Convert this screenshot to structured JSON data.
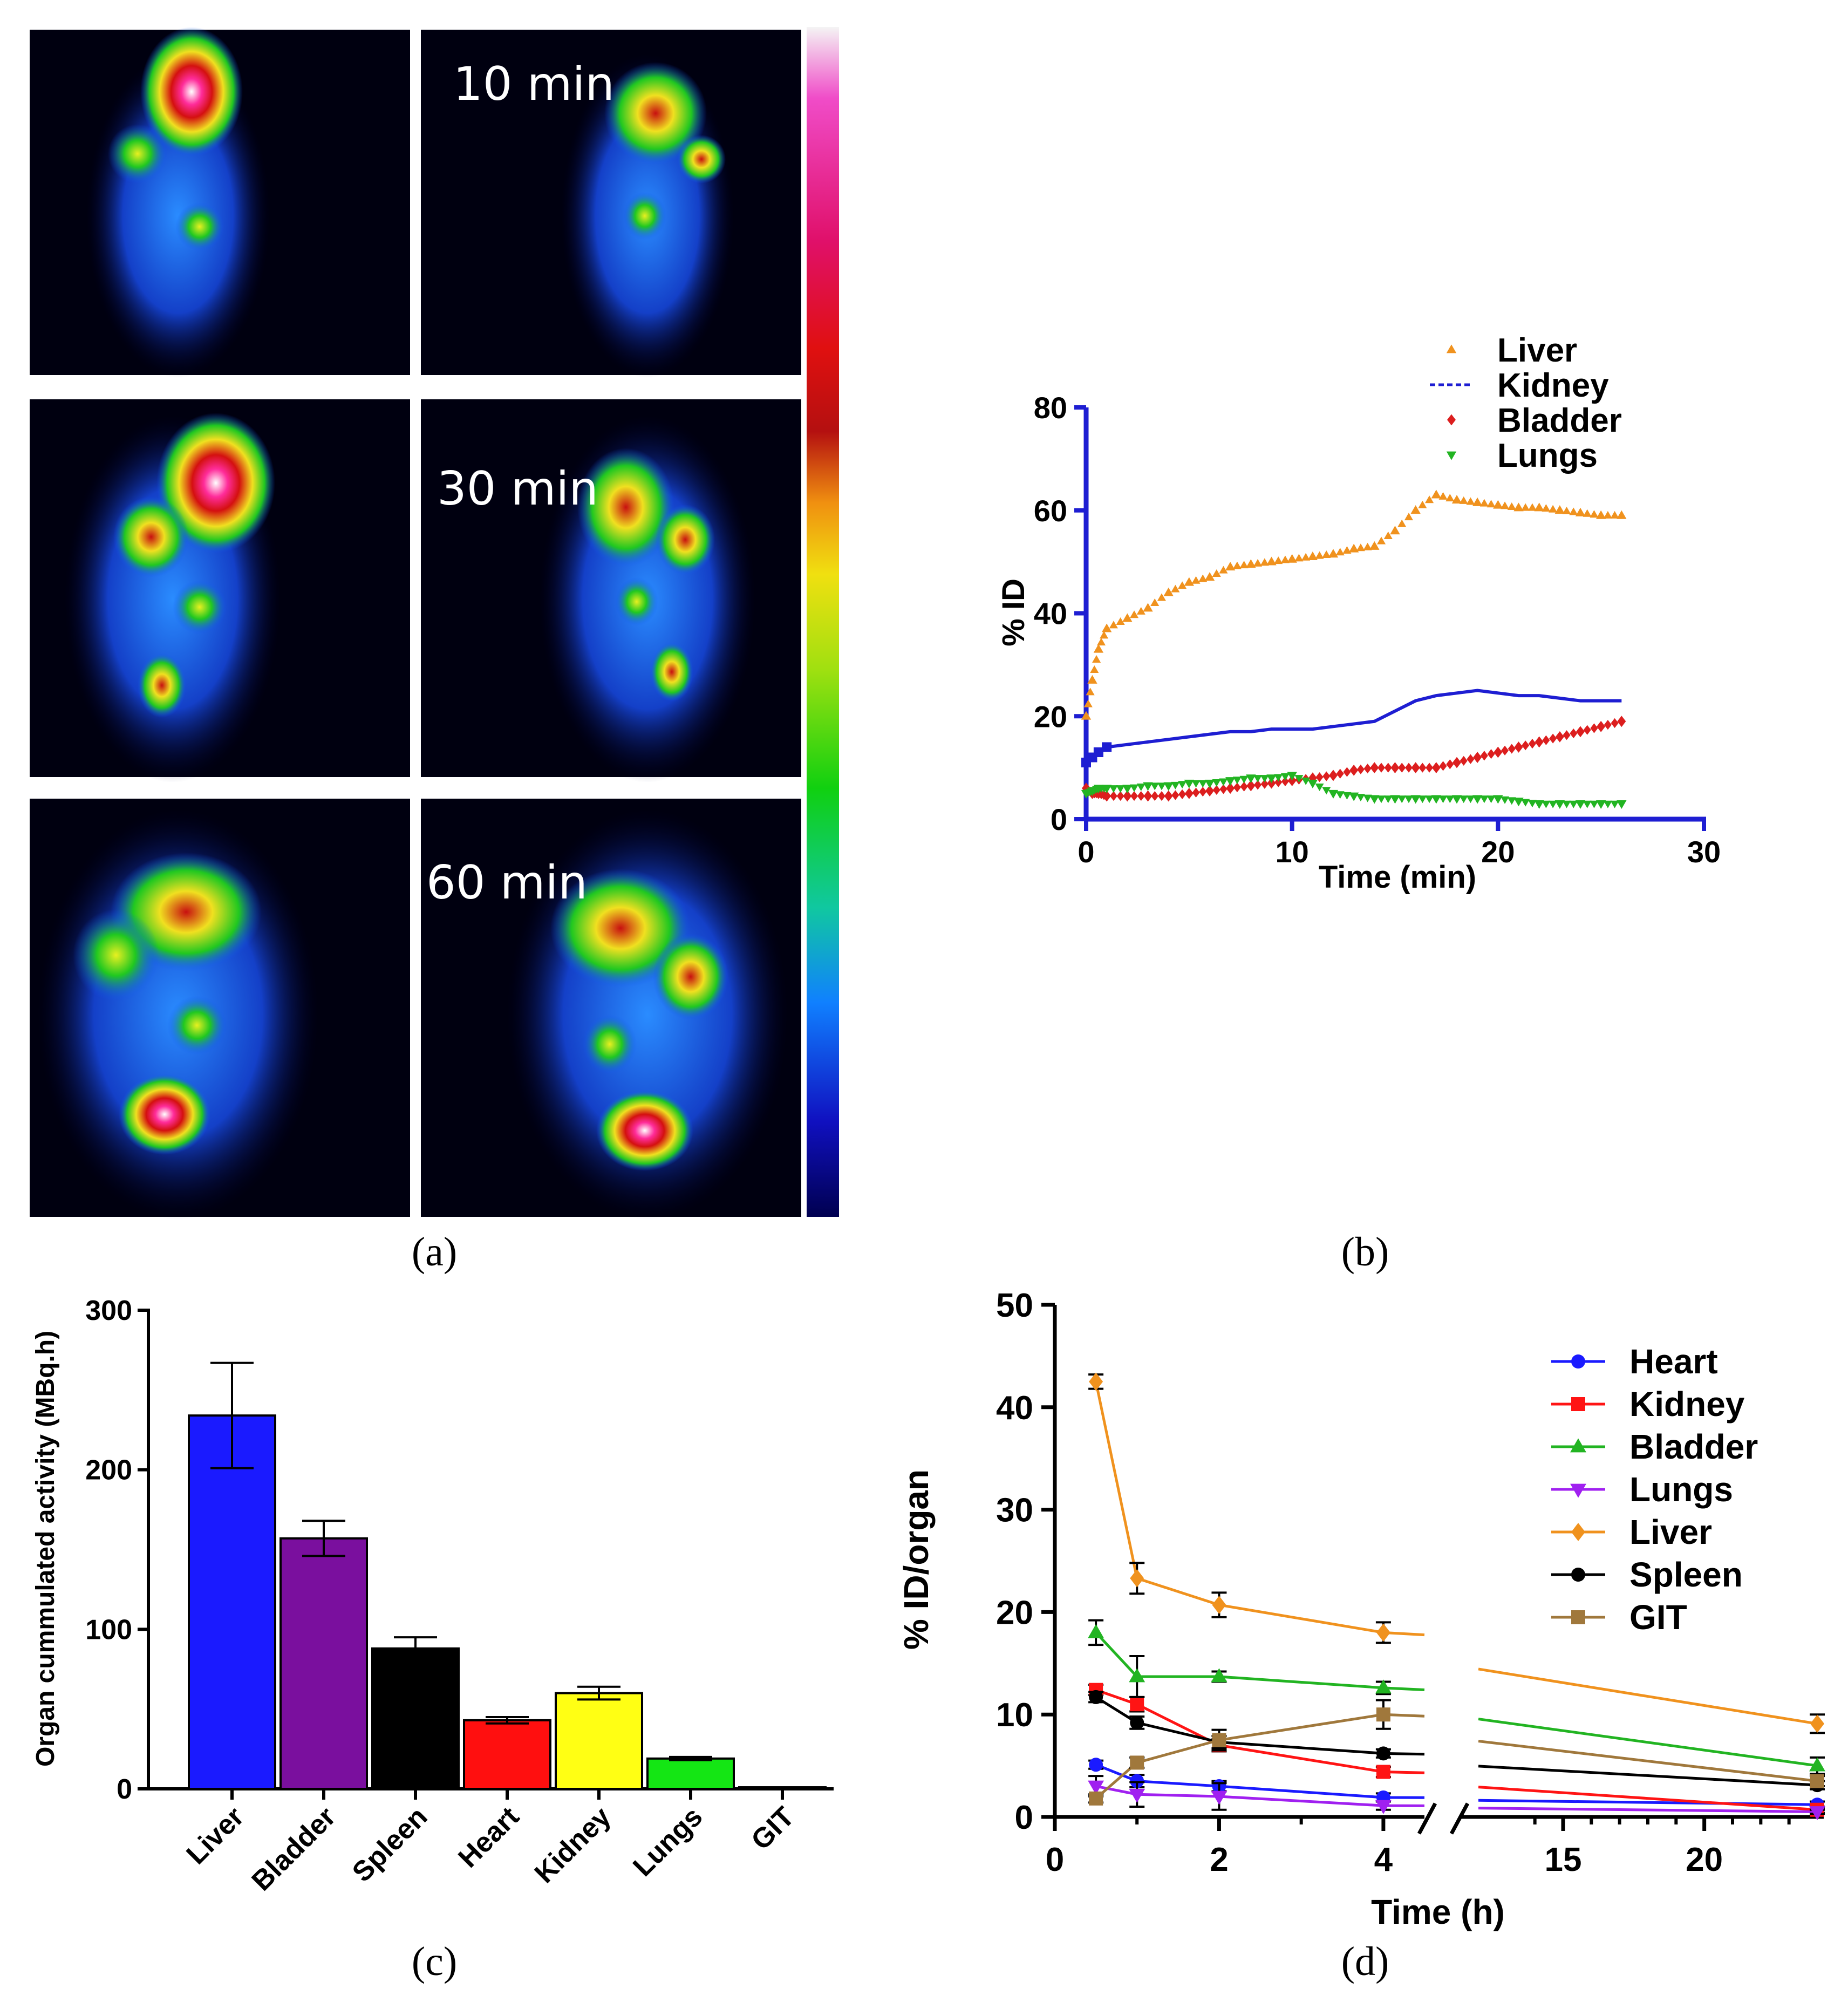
{
  "panels": {
    "a": {
      "label": "(a)",
      "times": [
        "10 min",
        "30 min",
        "60 min"
      ]
    },
    "b": {
      "label": "(b)"
    },
    "c": {
      "label": "(c)"
    },
    "d": {
      "label": "(d)"
    }
  },
  "colors": {
    "liver": "#f0921e",
    "kidney": "#1e1ed2",
    "bladder": "#dc1e1e",
    "lungs": "#22b422",
    "heart": "#1a1aff",
    "lungs_d": "#a020f0",
    "spleen": "#000000",
    "git": "#a0783c"
  },
  "chart_data": [
    {
      "id": "b",
      "type": "line",
      "title": "",
      "xlabel": "Time (min)",
      "ylabel": "% ID",
      "xlim": [
        0,
        30
      ],
      "ylim": [
        0,
        80
      ],
      "xticks": [
        0,
        10,
        20,
        30
      ],
      "yticks": [
        0,
        20,
        40,
        60,
        80
      ],
      "series": [
        {
          "name": "Liver",
          "marker": "triangle-up",
          "color": "#f0921e",
          "x": [
            0,
            0.3,
            0.6,
            1,
            2,
            3,
            4,
            5,
            6,
            7,
            8,
            9,
            10,
            11,
            12,
            13,
            14,
            15,
            16,
            17,
            18,
            19,
            20,
            21,
            22,
            23,
            24,
            25,
            26
          ],
          "y": [
            20,
            27,
            33,
            37,
            39,
            41,
            44,
            46,
            47,
            49,
            49.5,
            50,
            50.5,
            51,
            51.5,
            52.5,
            53,
            56,
            60,
            63,
            62,
            61.5,
            61,
            60.5,
            60.5,
            60,
            59.5,
            59,
            59
          ]
        },
        {
          "name": "Kidney",
          "marker": "square",
          "color": "#1e1ed2",
          "x": [
            0,
            0.3,
            0.6,
            1,
            2,
            3,
            4,
            5,
            6,
            7,
            8,
            9,
            10,
            11,
            12,
            13,
            14,
            15,
            16,
            17,
            18,
            19,
            20,
            21,
            22,
            23,
            24,
            25,
            26
          ],
          "y": [
            11,
            12,
            13,
            14,
            14.5,
            15,
            15.5,
            16,
            16.5,
            17,
            17,
            17.5,
            17.5,
            17.5,
            18,
            18.5,
            19,
            21,
            23,
            24,
            24.5,
            25,
            24.5,
            24,
            24,
            23.5,
            23,
            23,
            23
          ]
        },
        {
          "name": "Bladder",
          "marker": "diamond",
          "color": "#dc1e1e",
          "x": [
            0,
            0.3,
            0.6,
            1,
            2,
            3,
            4,
            5,
            6,
            7,
            8,
            9,
            10,
            11,
            12,
            13,
            14,
            15,
            16,
            17,
            18,
            19,
            20,
            21,
            22,
            23,
            24,
            25,
            26
          ],
          "y": [
            6,
            5,
            5,
            4.5,
            4.5,
            4.5,
            4.5,
            5,
            5.5,
            6,
            6.5,
            7,
            7.5,
            8,
            8.5,
            9.5,
            10,
            10,
            10,
            10,
            11,
            12,
            13,
            14,
            15,
            16,
            17,
            18,
            19
          ]
        },
        {
          "name": "Lungs",
          "marker": "triangle-down",
          "color": "#22b422",
          "x": [
            0,
            0.3,
            0.6,
            1,
            2,
            3,
            4,
            5,
            6,
            7,
            8,
            9,
            10,
            11,
            12,
            13,
            14,
            15,
            16,
            17,
            18,
            19,
            20,
            21,
            22,
            23,
            24,
            25,
            26
          ],
          "y": [
            5,
            5.5,
            6,
            6,
            6,
            6.5,
            6.5,
            7,
            7,
            7.5,
            8,
            8,
            8.5,
            7,
            5,
            4.5,
            4,
            4,
            4,
            4,
            4,
            4,
            4,
            3.5,
            3,
            3,
            3,
            3,
            3
          ]
        }
      ]
    },
    {
      "id": "c",
      "type": "bar",
      "title": "",
      "xlabel": "",
      "ylabel": "Organ cummulated activity (MBq.h)",
      "ylim": [
        0,
        300
      ],
      "yticks": [
        0,
        100,
        200,
        300
      ],
      "categories": [
        "Liver",
        "Bladder",
        "Spleen",
        "Heart",
        "Kidney",
        "Lungs",
        "GIT"
      ],
      "values": [
        234,
        157,
        88,
        43,
        60,
        19,
        1
      ],
      "errors": [
        33,
        11,
        7,
        2,
        4,
        1,
        0
      ],
      "bar_colors": [
        "#1a1aff",
        "#7a0f9e",
        "#000000",
        "#ff0f0f",
        "#ffff14",
        "#14e614",
        "#ff0f0f"
      ]
    },
    {
      "id": "d",
      "type": "line",
      "title": "",
      "xlabel": "Time (h)",
      "ylabel": "% ID/organ",
      "ylim": [
        0,
        50
      ],
      "yticks": [
        0,
        10,
        20,
        30,
        40,
        50
      ],
      "x_segments": [
        [
          0,
          4.5
        ],
        [
          12,
          24
        ]
      ],
      "xticks": [
        0,
        2,
        4,
        15,
        20
      ],
      "x": [
        0.5,
        1,
        2,
        4,
        24
      ],
      "series": [
        {
          "name": "Heart",
          "marker": "circle",
          "color": "#1a1aff",
          "values": [
            5.1,
            3.5,
            3.0,
            1.9,
            1.2
          ],
          "errors": [
            0.4,
            0.6,
            0.5,
            0.4,
            0.3
          ]
        },
        {
          "name": "Kidney",
          "marker": "square",
          "color": "#ff1414",
          "values": [
            12.4,
            11.0,
            7.0,
            4.4,
            0.7
          ],
          "errors": [
            0.5,
            0.7,
            0.6,
            0.5,
            0.3
          ]
        },
        {
          "name": "Bladder",
          "marker": "triangle-up",
          "color": "#22b422",
          "values": [
            18.0,
            13.7,
            13.7,
            12.6,
            5.0
          ],
          "errors": [
            1.2,
            2.0,
            0.5,
            0.6,
            0.8
          ]
        },
        {
          "name": "Lungs",
          "marker": "triangle-down",
          "color": "#a020f0",
          "values": [
            3.0,
            2.2,
            2.0,
            1.1,
            0.5
          ],
          "errors": [
            1.0,
            1.2,
            1.3,
            0.4,
            0.2
          ]
        },
        {
          "name": "Liver",
          "marker": "diamond",
          "color": "#f0921e",
          "values": [
            42.5,
            23.3,
            20.7,
            18.0,
            9.1
          ],
          "errors": [
            0.7,
            1.5,
            1.2,
            1.0,
            0.9
          ]
        },
        {
          "name": "Spleen",
          "marker": "circle",
          "color": "#000000",
          "values": [
            11.7,
            9.2,
            7.3,
            6.2,
            3.1
          ],
          "errors": [
            0.5,
            0.6,
            0.6,
            0.4,
            0.4
          ]
        },
        {
          "name": "GIT",
          "marker": "square",
          "color": "#a0783c",
          "values": [
            1.8,
            5.3,
            7.5,
            10.0,
            3.5
          ],
          "errors": [
            0.4,
            0.5,
            1.0,
            1.4,
            0.5
          ]
        }
      ]
    }
  ]
}
